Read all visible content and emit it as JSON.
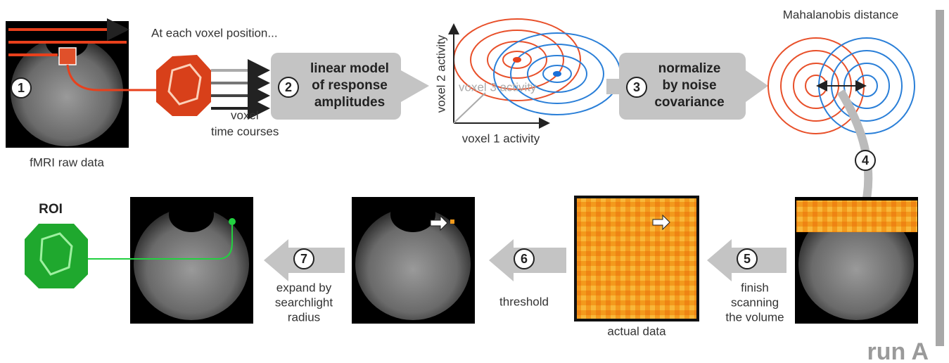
{
  "labels": {
    "voxel_position": "At each voxel position...",
    "raw_data": "fMRI raw data",
    "time_courses": [
      "voxel",
      "time courses"
    ],
    "axis_x": "voxel 1 activity",
    "axis_y": "voxel 2 activity",
    "axis_z": "voxel 3 activity",
    "mahalanobis": "Mahalanobis distance",
    "actual_data": "actual data",
    "roi": "ROI",
    "run": "run A"
  },
  "steps": [
    {
      "number": "1"
    },
    {
      "number": "2",
      "lines": [
        "linear model",
        "of response",
        "amplitudes"
      ]
    },
    {
      "number": "3",
      "lines": [
        "normalize",
        "by noise",
        "covariance"
      ]
    },
    {
      "number": "4"
    },
    {
      "number": "5",
      "lines": [
        "finish",
        "scanning",
        "the volume"
      ]
    },
    {
      "number": "6",
      "lines": [
        "threshold"
      ]
    },
    {
      "number": "7",
      "lines": [
        "expand by",
        "searchlight",
        "radius"
      ]
    }
  ]
}
